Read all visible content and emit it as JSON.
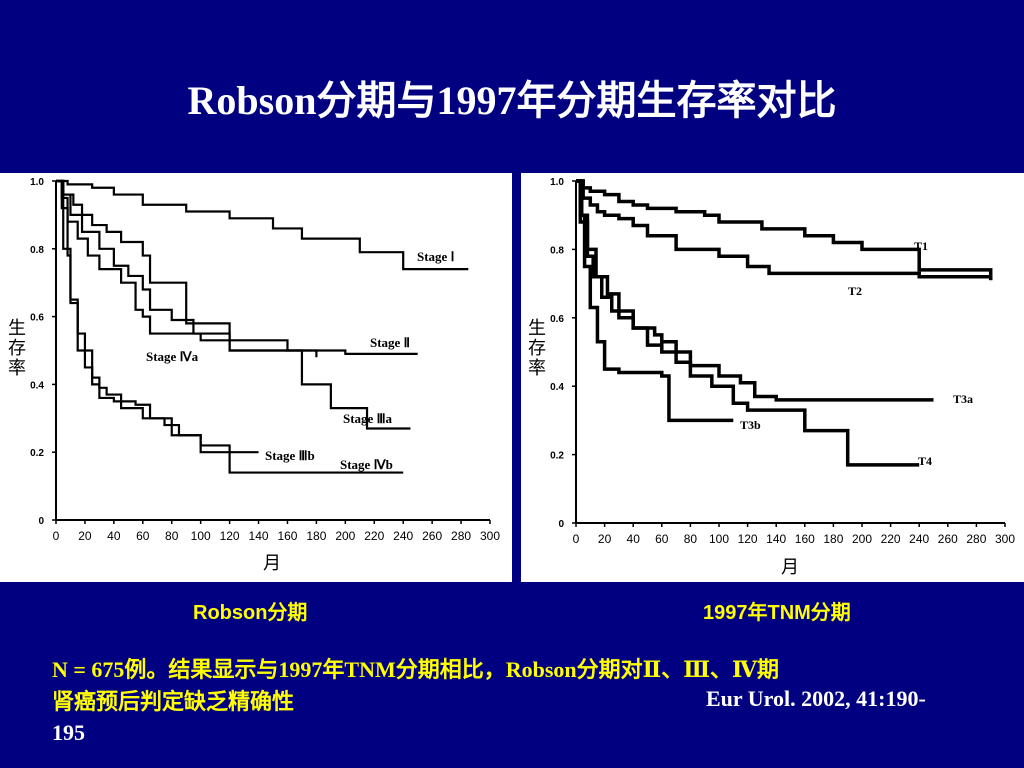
{
  "slide": {
    "title": "Robson分期与1997年分期生存率对比",
    "caption_left": "Robson分期",
    "caption_right": "1997年TNM分期",
    "note_line1": "N = 675例。结果显示与1997年TNM分期相比，Robson分期对Ⅱ、Ⅲ、Ⅳ期",
    "note_line2": "肾癌预后判定缺乏精确性",
    "citation_a": "Eur Urol. 2002, 41:190-",
    "citation_b": "195"
  },
  "chart_data": [
    {
      "type": "line",
      "step": true,
      "xlabel": "月",
      "ylabel": "生存率",
      "xlim": [
        0,
        300
      ],
      "ylim": [
        0,
        1.0
      ],
      "xticks": [
        "0",
        "20",
        "40",
        "60",
        "80",
        "100",
        "120",
        "140",
        "160",
        "180",
        "200",
        "220",
        "240",
        "260",
        "280",
        "300"
      ],
      "yticks": [
        "0",
        "0.2",
        "0.4",
        "0.6",
        "0.8",
        "1.0"
      ],
      "series": [
        {
          "name": "Stage Ⅰ",
          "x": [
            0,
            8,
            25,
            40,
            60,
            90,
            120,
            150,
            170,
            210,
            240,
            285
          ],
          "y": [
            1.0,
            0.99,
            0.98,
            0.96,
            0.93,
            0.91,
            0.89,
            0.86,
            0.83,
            0.79,
            0.74,
            0.74
          ]
        },
        {
          "name": "Stage Ⅱ",
          "x": [
            0,
            5,
            12,
            18,
            25,
            35,
            45,
            60,
            65,
            90,
            120,
            160,
            200,
            250
          ],
          "y": [
            1.0,
            0.96,
            0.93,
            0.9,
            0.87,
            0.85,
            0.82,
            0.78,
            0.7,
            0.58,
            0.53,
            0.5,
            0.49,
            0.49
          ]
        },
        {
          "name": "Stage Ⅳa",
          "x": [
            0,
            4,
            8,
            15,
            22,
            30,
            45,
            55,
            60,
            65,
            80,
            100,
            120,
            150,
            180
          ],
          "y": [
            1.0,
            0.95,
            0.88,
            0.83,
            0.78,
            0.74,
            0.7,
            0.62,
            0.6,
            0.55,
            0.55,
            0.53,
            0.5,
            0.5,
            0.48
          ]
        },
        {
          "name": "Stage Ⅲa",
          "x": [
            0,
            5,
            10,
            18,
            30,
            40,
            50,
            60,
            65,
            80,
            95,
            120,
            150,
            170,
            190,
            215,
            245
          ],
          "y": [
            1.0,
            0.96,
            0.9,
            0.85,
            0.8,
            0.75,
            0.72,
            0.68,
            0.62,
            0.59,
            0.55,
            0.5,
            0.5,
            0.4,
            0.33,
            0.27,
            0.27
          ]
        },
        {
          "name": "Stage Ⅲb",
          "x": [
            0,
            5,
            10,
            15,
            25,
            30,
            35,
            45,
            55,
            65,
            75,
            85,
            100,
            120,
            140
          ],
          "y": [
            1.0,
            0.8,
            0.65,
            0.5,
            0.42,
            0.39,
            0.37,
            0.35,
            0.34,
            0.3,
            0.28,
            0.25,
            0.22,
            0.2,
            0.2
          ]
        },
        {
          "name": "Stage Ⅳb",
          "x": [
            0,
            4,
            8,
            10,
            15,
            20,
            25,
            30,
            40,
            45,
            60,
            80,
            100,
            120,
            150,
            170,
            240
          ],
          "y": [
            1.0,
            0.92,
            0.78,
            0.64,
            0.55,
            0.45,
            0.4,
            0.36,
            0.35,
            0.33,
            0.3,
            0.25,
            0.2,
            0.14,
            0.14,
            0.14,
            0.14
          ]
        }
      ]
    },
    {
      "type": "line",
      "step": true,
      "xlabel": "月",
      "ylabel": "生存率",
      "xlim": [
        0,
        300
      ],
      "ylim": [
        0,
        1.0
      ],
      "xticks": [
        "0",
        "20",
        "40",
        "60",
        "80",
        "100",
        "120",
        "140",
        "160",
        "180",
        "200",
        "220",
        "240",
        "260",
        "280",
        "300"
      ],
      "yticks": [
        "0",
        "0.2",
        "0.4",
        "0.6",
        "0.8",
        "1.0"
      ],
      "series": [
        {
          "name": "T1",
          "x": [
            0,
            5,
            10,
            20,
            30,
            40,
            50,
            70,
            90,
            100,
            130,
            160,
            180,
            200,
            240,
            290
          ],
          "y": [
            1.0,
            0.98,
            0.97,
            0.96,
            0.94,
            0.93,
            0.92,
            0.91,
            0.9,
            0.88,
            0.86,
            0.84,
            0.82,
            0.8,
            0.74,
            0.71
          ]
        },
        {
          "name": "T2",
          "x": [
            0,
            5,
            10,
            15,
            20,
            30,
            40,
            50,
            70,
            100,
            120,
            135,
            170,
            240,
            290
          ],
          "y": [
            1.0,
            0.95,
            0.93,
            0.91,
            0.9,
            0.89,
            0.87,
            0.84,
            0.8,
            0.78,
            0.75,
            0.73,
            0.73,
            0.72,
            0.71
          ]
        },
        {
          "name": "T3a",
          "x": [
            0,
            3,
            8,
            12,
            18,
            25,
            30,
            40,
            55,
            60,
            70,
            80,
            100,
            115,
            125,
            140,
            250
          ],
          "y": [
            1.0,
            0.88,
            0.78,
            0.72,
            0.66,
            0.62,
            0.6,
            0.57,
            0.55,
            0.53,
            0.5,
            0.46,
            0.43,
            0.41,
            0.37,
            0.36,
            0.36
          ]
        },
        {
          "name": "T3b",
          "x": [
            0,
            4,
            8,
            14,
            22,
            30,
            40,
            50,
            60,
            70,
            80,
            95,
            110,
            120,
            160,
            190,
            240
          ],
          "y": [
            1.0,
            0.9,
            0.8,
            0.72,
            0.67,
            0.62,
            0.57,
            0.52,
            0.5,
            0.47,
            0.43,
            0.4,
            0.35,
            0.33,
            0.27,
            0.17,
            0.17
          ]
        },
        {
          "name": "T4",
          "x": [
            0,
            3,
            6,
            10,
            15,
            20,
            30,
            60,
            65,
            90,
            110
          ],
          "y": [
            1.0,
            0.9,
            0.75,
            0.63,
            0.53,
            0.45,
            0.44,
            0.43,
            0.3,
            0.3,
            0.3
          ]
        }
      ]
    }
  ]
}
